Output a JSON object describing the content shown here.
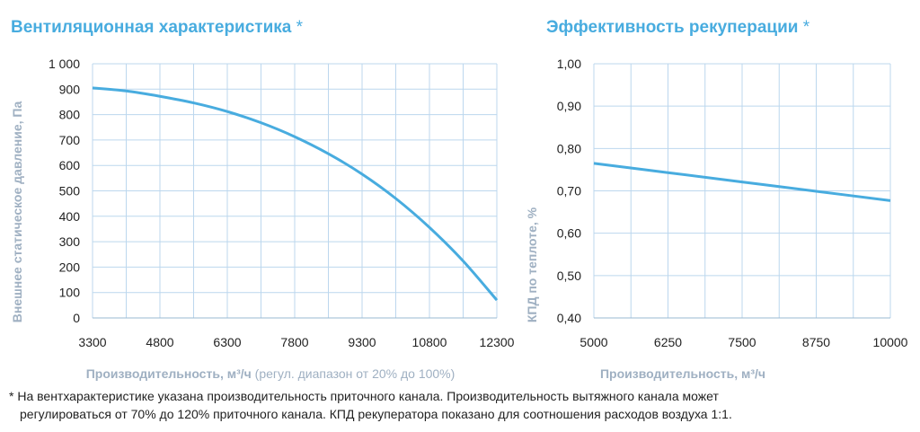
{
  "left_chart": {
    "title": "Вентиляционная характеристика",
    "title_star": "*",
    "ylabel": "Внешнее статическое давление, Па",
    "xlabel_bold": "Производительность",
    "xlabel_unit": ", м³/ч",
    "xlabel_note": " (регул. диапазон от 20% до 100%)"
  },
  "right_chart": {
    "title": "Эффективность рекуперации",
    "title_star": "*",
    "ylabel": "КПД по теплоте, %",
    "xlabel_bold": "Производительность",
    "xlabel_unit": ", м³/ч"
  },
  "footnote": {
    "line1": "* На вентхарактеристике указана производительность приточного канала. Производительность вытяжного канала может",
    "line2": "регулироваться от 70% до 120% приточного канала. КПД рекуператора показано для соотношения расходов воздуха 1:1."
  },
  "colors": {
    "accent": "#48acdf",
    "grid": "#bcd7ee",
    "axis_label": "#9fb0c2"
  },
  "chart_data": [
    {
      "type": "line",
      "title": "Вентиляционная характеристика *",
      "xlabel": "Производительность, м³/ч (регул. диапазон от 20% до 100%)",
      "ylabel": "Внешнее статическое давление, Па",
      "xlim": [
        3300,
        12300
      ],
      "ylim": [
        0,
        1000
      ],
      "x_ticks": [
        "3300",
        "4800",
        "6300",
        "7800",
        "9300",
        "10800",
        "12300"
      ],
      "y_ticks": [
        "0",
        "100",
        "200",
        "300",
        "400",
        "500",
        "600",
        "700",
        "800",
        "900",
        "1 000"
      ],
      "x_tick_values": [
        3300,
        4800,
        6300,
        7800,
        9300,
        10800,
        12300
      ],
      "y_tick_values": [
        0,
        100,
        200,
        300,
        400,
        500,
        600,
        700,
        800,
        900,
        1000
      ],
      "grid": true,
      "series": [
        {
          "color": "#48acdf",
          "x": [
            3300,
            4050,
            4800,
            5550,
            6300,
            7050,
            7800,
            8550,
            9300,
            10050,
            10800,
            11550,
            12300
          ],
          "y": [
            905,
            893,
            872,
            846,
            812,
            768,
            713,
            646,
            566,
            470,
            356,
            224,
            70
          ]
        }
      ]
    },
    {
      "type": "line",
      "title": "Эффективность рекуперации *",
      "xlabel": "Производительность, м³/ч",
      "ylabel": "КПД по теплоте, %",
      "xlim": [
        5000,
        10000
      ],
      "ylim": [
        0.4,
        1.0
      ],
      "x_ticks": [
        "5000",
        "6250",
        "7500",
        "8750",
        "10000"
      ],
      "y_ticks": [
        "0,40",
        "0,50",
        "0,60",
        "0,70",
        "0,80",
        "0,90",
        "1,00"
      ],
      "x_tick_values": [
        5000,
        6250,
        7500,
        8750,
        10000
      ],
      "y_tick_values": [
        0.4,
        0.5,
        0.6,
        0.7,
        0.8,
        0.9,
        1.0
      ],
      "grid": true,
      "series": [
        {
          "color": "#48acdf",
          "x": [
            5000,
            6250,
            7500,
            8750,
            10000
          ],
          "y": [
            0.765,
            0.743,
            0.721,
            0.699,
            0.677
          ]
        }
      ]
    }
  ]
}
